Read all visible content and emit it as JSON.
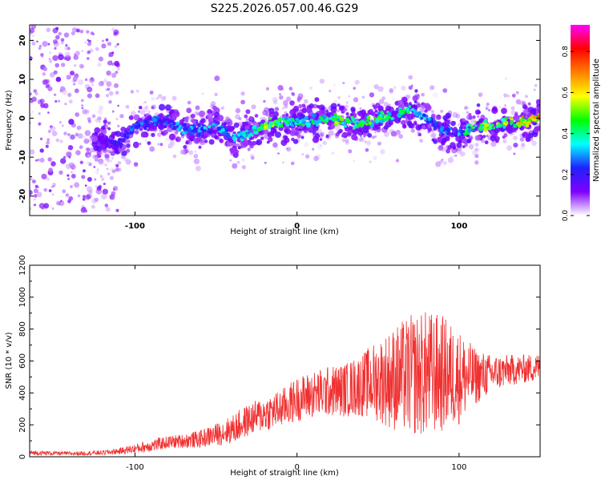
{
  "title": "S225.2026.057.00.46.G29",
  "colorbar": {
    "label": "Normalized spectral amplitude",
    "ticks": [
      "0.0",
      "0.2",
      "0.4",
      "0.6",
      "0.8"
    ],
    "tick_values": [
      0.0,
      0.2,
      0.4,
      0.6,
      0.8
    ],
    "range": [
      0,
      0.93
    ],
    "stops": [
      "#ffffff",
      "#8000ff",
      "#2020ff",
      "#00ffff",
      "#00ff00",
      "#ffff00",
      "#ff8000",
      "#ff0000",
      "#ff00ff"
    ]
  },
  "colors": {
    "snr_line": "#f03030",
    "axis": "#000000",
    "spectrum_point": "#6a10d8"
  },
  "chart_data": [
    {
      "type": "heatmap",
      "title": "S225.2026.057.00.46.G29",
      "xlabel": "Height of straight line (km)",
      "ylabel": "Frequency (Hz)",
      "xlim": [
        -165,
        150
      ],
      "ylim": [
        -25,
        24
      ],
      "xticks": [
        -100,
        0,
        100
      ],
      "yticks": [
        -20,
        -10,
        0,
        10,
        20
      ],
      "ridge": {
        "x": [
          -120,
          -110,
          -100,
          -90,
          -80,
          -70,
          -60,
          -50,
          -40,
          -30,
          -20,
          -10,
          0,
          10,
          20,
          30,
          40,
          50,
          60,
          70,
          80,
          90,
          100,
          110,
          120,
          130,
          140,
          150
        ],
        "frequency": [
          -6,
          -7,
          -2,
          -1,
          -1,
          -3,
          -3,
          -2,
          -5,
          -4,
          -2,
          -1,
          -1,
          -1,
          0,
          -1,
          -1,
          0,
          1,
          2,
          0,
          -3,
          -4,
          -2,
          -2,
          -1,
          -1,
          0
        ],
        "amplitude": [
          0.15,
          0.25,
          0.3,
          0.3,
          0.3,
          0.35,
          0.35,
          0.4,
          0.35,
          0.45,
          0.6,
          0.5,
          0.45,
          0.5,
          0.55,
          0.55,
          0.5,
          0.55,
          0.5,
          0.45,
          0.35,
          0.3,
          0.35,
          0.55,
          0.6,
          0.65,
          0.7,
          0.75
        ]
      }
    },
    {
      "type": "line",
      "xlabel": "Height of straight line (km)",
      "ylabel": "SNR (10 * v/v)",
      "xlim": [
        -165,
        150
      ],
      "ylim": [
        0,
        1200
      ],
      "xticks": [
        -100,
        0,
        100
      ],
      "yticks": [
        0,
        200,
        400,
        600,
        800,
        1000,
        1200
      ],
      "envelope": {
        "x": [
          -165,
          -140,
          -120,
          -110,
          -100,
          -90,
          -80,
          -70,
          -60,
          -50,
          -40,
          -35,
          -30,
          -20,
          -10,
          0,
          10,
          20,
          30,
          40,
          50,
          60,
          70,
          80,
          90,
          100,
          110,
          120,
          130,
          140,
          150
        ],
        "mean": [
          25,
          20,
          25,
          35,
          50,
          70,
          90,
          100,
          110,
          140,
          170,
          200,
          230,
          270,
          300,
          360,
          390,
          410,
          420,
          450,
          480,
          490,
          510,
          520,
          520,
          500,
          500,
          520,
          540,
          550,
          560
        ],
        "spread": [
          15,
          12,
          15,
          20,
          30,
          40,
          40,
          45,
          55,
          70,
          90,
          100,
          100,
          110,
          120,
          140,
          150,
          160,
          170,
          200,
          260,
          330,
          380,
          400,
          370,
          300,
          180,
          120,
          100,
          90,
          90
        ]
      }
    }
  ]
}
